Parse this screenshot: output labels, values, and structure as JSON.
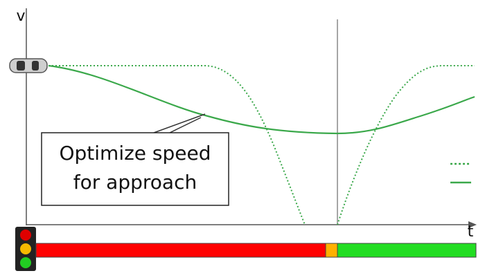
{
  "axes": {
    "y_label": "v",
    "x_label": "t"
  },
  "callout": {
    "lines": [
      "Optimize speed",
      "for approach"
    ]
  }
}
